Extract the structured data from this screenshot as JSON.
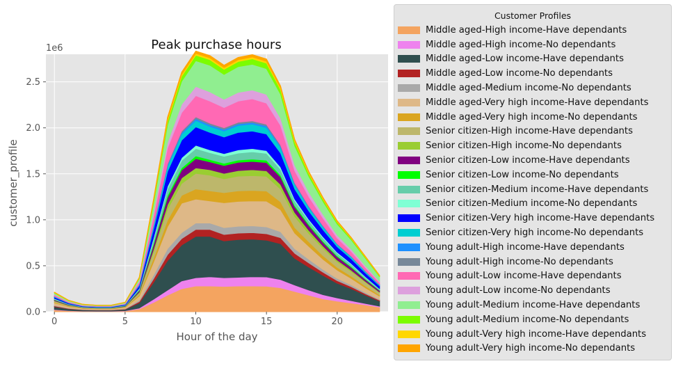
{
  "chart_data": {
    "type": "area",
    "stacked": true,
    "title": "Peak purchase hours",
    "xlabel": "Hour of the day",
    "ylabel": "customer_profile",
    "y_offset_label": "1e6",
    "xlim": [
      -0.6,
      23.6
    ],
    "ylim": [
      0,
      2800000
    ],
    "xticks": [
      0,
      5,
      10,
      15,
      20
    ],
    "yticks": [
      0,
      500000,
      1000000,
      1500000,
      2000000,
      2500000
    ],
    "ytick_labels": [
      "0.0",
      "0.5",
      "1.0",
      "1.5",
      "2.0",
      "2.5"
    ],
    "grid": true,
    "style": "ggplot",
    "legend_title": "Customer Profiles",
    "legend_position": "outside-right",
    "x": [
      0,
      1,
      2,
      3,
      4,
      5,
      6,
      7,
      8,
      9,
      10,
      11,
      12,
      13,
      14,
      15,
      16,
      17,
      18,
      19,
      20,
      21,
      22,
      23
    ],
    "series": [
      {
        "name": "Middle aged-High income-Have dependants",
        "color": "#f4a460",
        "values": [
          20000,
          10000,
          6000,
          5000,
          5000,
          8000,
          30000,
          100000,
          180000,
          250000,
          280000,
          280000,
          275000,
          280000,
          280000,
          278000,
          260000,
          220000,
          180000,
          140000,
          115000,
          95000,
          75000,
          50000
        ]
      },
      {
        "name": "Middle aged-High income-No dependants",
        "color": "#ee82ee",
        "values": [
          5000,
          3000,
          2000,
          2000,
          2000,
          3000,
          10000,
          35000,
          55000,
          85000,
          90000,
          100000,
          95000,
          95000,
          100000,
          100000,
          90000,
          70000,
          55000,
          45000,
          35000,
          25000,
          15000,
          10000
        ]
      },
      {
        "name": "Middle aged-Low income-Have dependants",
        "color": "#2f4f4f",
        "values": [
          30000,
          18000,
          12000,
          10000,
          10000,
          14000,
          55000,
          180000,
          320000,
          390000,
          450000,
          440000,
          400000,
          410000,
          410000,
          400000,
          390000,
          290000,
          250000,
          210000,
          160000,
          130000,
          90000,
          55000
        ]
      },
      {
        "name": "Middle aged-Low income-No dependants",
        "color": "#b22222",
        "values": [
          8000,
          5000,
          3000,
          3000,
          3000,
          4000,
          15000,
          40000,
          65000,
          70000,
          75000,
          75000,
          70000,
          70000,
          70000,
          70000,
          65000,
          55000,
          45000,
          35000,
          28000,
          22000,
          15000,
          10000
        ]
      },
      {
        "name": "Middle aged-Medium income-No dependants",
        "color": "#a9a9a9",
        "values": [
          8000,
          5000,
          3000,
          3000,
          3000,
          4000,
          15000,
          40000,
          65000,
          65000,
          70000,
          70000,
          75000,
          75000,
          75000,
          75000,
          65000,
          50000,
          40000,
          30000,
          25000,
          20000,
          15000,
          10000
        ]
      },
      {
        "name": "Middle aged-Very high income-Have dependants",
        "color": "#deb887",
        "values": [
          25000,
          15000,
          10000,
          8000,
          8000,
          12000,
          45000,
          140000,
          240000,
          320000,
          260000,
          240000,
          270000,
          270000,
          270000,
          280000,
          240000,
          170000,
          140000,
          110000,
          90000,
          70000,
          50000,
          35000
        ]
      },
      {
        "name": "Middle aged-Very high income-No dependants",
        "color": "#daa520",
        "values": [
          8000,
          5000,
          3000,
          3000,
          3000,
          4000,
          15000,
          40000,
          70000,
          85000,
          110000,
          110000,
          110000,
          115000,
          115000,
          110000,
          85000,
          60000,
          50000,
          40000,
          30000,
          25000,
          20000,
          12000
        ]
      },
      {
        "name": "Senior citizen-High income-Have dependants",
        "color": "#bdb76b",
        "values": [
          12000,
          7000,
          5000,
          4000,
          4000,
          6000,
          20000,
          70000,
          120000,
          130000,
          170000,
          170000,
          150000,
          160000,
          160000,
          160000,
          140000,
          120000,
          90000,
          80000,
          60000,
          50000,
          40000,
          25000
        ]
      },
      {
        "name": "Senior citizen-High income-No dependants",
        "color": "#9acd32",
        "values": [
          5000,
          3000,
          2000,
          2000,
          2000,
          3000,
          10000,
          30000,
          50000,
          60000,
          60000,
          60000,
          60000,
          60000,
          65000,
          60000,
          50000,
          45000,
          35000,
          25000,
          20000,
          15000,
          10000,
          8000
        ]
      },
      {
        "name": "Senior citizen-Low income-Have dependants",
        "color": "#800080",
        "values": [
          8000,
          5000,
          3000,
          3000,
          3000,
          4000,
          15000,
          45000,
          75000,
          85000,
          100000,
          85000,
          85000,
          90000,
          90000,
          90000,
          80000,
          60000,
          50000,
          40000,
          35000,
          30000,
          20000,
          15000
        ]
      },
      {
        "name": "Senior citizen-Low income-No dependants",
        "color": "#00ff00",
        "values": [
          3000,
          2000,
          1000,
          1000,
          1000,
          2000,
          5000,
          15000,
          25000,
          25000,
          30000,
          25000,
          25000,
          25000,
          25000,
          25000,
          20000,
          15000,
          15000,
          12000,
          10000,
          8000,
          6000,
          4000
        ]
      },
      {
        "name": "Senior citizen-Medium income-Have dependants",
        "color": "#66cdaa",
        "values": [
          8000,
          5000,
          3000,
          3000,
          3000,
          4000,
          15000,
          45000,
          70000,
          80000,
          80000,
          75000,
          75000,
          75000,
          80000,
          75000,
          65000,
          50000,
          40000,
          35000,
          28000,
          25000,
          18000,
          12000
        ]
      },
      {
        "name": "Senior citizen-Medium income-No dependants",
        "color": "#7fffd4",
        "values": [
          4000,
          2000,
          1500,
          1000,
          1000,
          2000,
          6000,
          20000,
          30000,
          30000,
          35000,
          30000,
          30000,
          35000,
          35000,
          30000,
          25000,
          20000,
          15000,
          15000,
          12000,
          10000,
          8000,
          5000
        ]
      },
      {
        "name": "Senior citizen-Very high income-Have dependants",
        "color": "#0000ff",
        "values": [
          15000,
          9000,
          6000,
          5000,
          5000,
          7000,
          28000,
          90000,
          160000,
          190000,
          200000,
          190000,
          180000,
          190000,
          190000,
          180000,
          150000,
          110000,
          90000,
          75000,
          60000,
          50000,
          40000,
          30000
        ]
      },
      {
        "name": "Senior citizen-Very high income-No dependants",
        "color": "#00ced1",
        "values": [
          6000,
          3500,
          2500,
          2000,
          2000,
          3000,
          10000,
          35000,
          55000,
          65000,
          70000,
          65000,
          65000,
          75000,
          75000,
          70000,
          60000,
          45000,
          35000,
          30000,
          22000,
          20000,
          15000,
          10000
        ]
      },
      {
        "name": "Young adult-High income-Have dependants",
        "color": "#1e90ff",
        "values": [
          2000,
          1000,
          800,
          700,
          700,
          1000,
          3000,
          10000,
          15000,
          18000,
          20000,
          18000,
          18000,
          18000,
          18000,
          18000,
          15000,
          12000,
          10000,
          8000,
          6000,
          5000,
          4000,
          3000
        ]
      },
      {
        "name": "Young adult-High income-No dependants",
        "color": "#778899",
        "values": [
          2000,
          1000,
          800,
          700,
          700,
          1000,
          3000,
          10000,
          15000,
          18000,
          20000,
          18000,
          18000,
          18000,
          18000,
          18000,
          15000,
          12000,
          10000,
          8000,
          6000,
          5000,
          4000,
          3000
        ]
      },
      {
        "name": "Young adult-Low income-Have dependants",
        "color": "#ff69b4",
        "values": [
          15000,
          9000,
          6000,
          5000,
          5000,
          7000,
          25000,
          90000,
          170000,
          200000,
          230000,
          240000,
          220000,
          230000,
          240000,
          230000,
          210000,
          130000,
          100000,
          80000,
          60000,
          50000,
          35000,
          22000
        ]
      },
      {
        "name": "Young adult-Low income-No dependants",
        "color": "#dda0dd",
        "values": [
          5000,
          3000,
          2000,
          2000,
          2000,
          3000,
          10000,
          35000,
          60000,
          90000,
          100000,
          100000,
          90000,
          95000,
          95000,
          95000,
          80000,
          60000,
          50000,
          40000,
          32000,
          25000,
          20000,
          12000
        ]
      },
      {
        "name": "Young adult-Medium income-Have dependants",
        "color": "#90ee90",
        "values": [
          15000,
          9000,
          6000,
          5000,
          5000,
          7000,
          25000,
          95000,
          190000,
          250000,
          280000,
          290000,
          270000,
          280000,
          280000,
          280000,
          260000,
          210000,
          170000,
          140000,
          120000,
          100000,
          80000,
          50000
        ]
      },
      {
        "name": "Young adult-Medium income-No dependants",
        "color": "#7cfc00",
        "values": [
          4000,
          2500,
          1500,
          1200,
          1200,
          2000,
          7000,
          25000,
          40000,
          55000,
          60000,
          60000,
          55000,
          55000,
          60000,
          60000,
          50000,
          40000,
          30000,
          25000,
          20000,
          15000,
          12000,
          8000
        ]
      },
      {
        "name": "Young adult-Very high income-Have dependants",
        "color": "#ffd700",
        "values": [
          2000,
          1000,
          800,
          600,
          600,
          1000,
          3000,
          10000,
          20000,
          20000,
          20000,
          20000,
          20000,
          20000,
          20000,
          20000,
          20000,
          15000,
          12000,
          10000,
          8000,
          6000,
          5000,
          3000
        ]
      },
      {
        "name": "Young adult-Very high income-No dependants",
        "color": "#ffa500",
        "values": [
          3000,
          1500,
          1000,
          800,
          800,
          1200,
          4000,
          15000,
          25000,
          25000,
          25000,
          25000,
          25000,
          25000,
          25000,
          25000,
          20000,
          15000,
          12000,
          10000,
          8000,
          6000,
          5000,
          4000
        ]
      }
    ]
  }
}
